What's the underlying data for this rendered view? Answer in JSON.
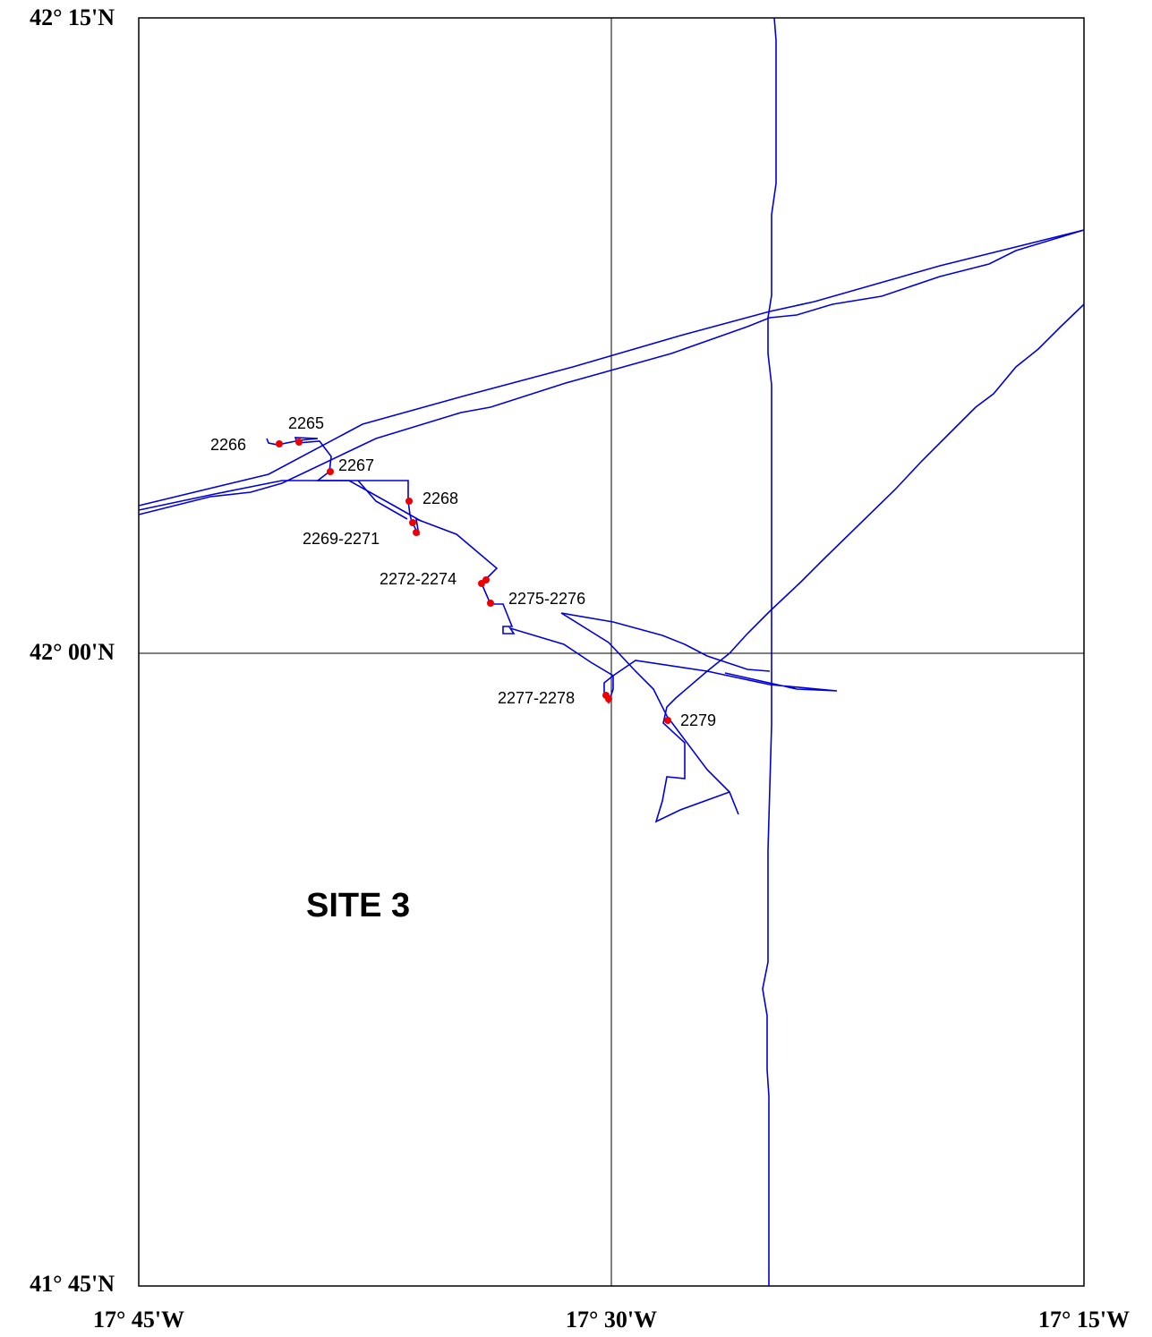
{
  "map": {
    "title": "SITE 3",
    "lat_labels": [
      "42° 15'N",
      "42° 00'N",
      "41° 45'N"
    ],
    "lon_labels": [
      "17° 45'W",
      "17° 30'W",
      "17° 15'W"
    ],
    "stations": [
      "2265",
      "2266",
      "2267",
      "2268",
      "2269-2271",
      "2272-2274",
      "2275-2276",
      "2277-2278",
      "2279"
    ]
  }
}
